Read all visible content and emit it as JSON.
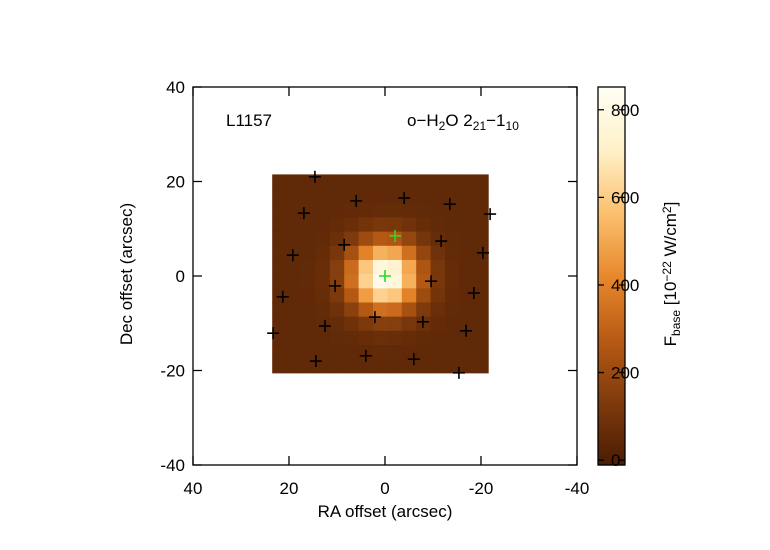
{
  "chart_data": {
    "type": "heatmap",
    "annotation": "L1157",
    "label_parts": [
      {
        "text": "o−H"
      },
      {
        "text": "2",
        "sub": true
      },
      {
        "text": "O 2"
      },
      {
        "text": "21",
        "sub": true
      },
      {
        "text": "−1"
      },
      {
        "text": "10",
        "sub": true
      }
    ],
    "x_label": "RA offset (arcsec)",
    "y_label": "Dec offset (arcsec)",
    "colorbar_label_parts": [
      {
        "text": "F"
      },
      {
        "text": "base",
        "sub": true
      },
      {
        "text": " [10"
      },
      {
        "text": "−22",
        "sup": true
      },
      {
        "text": " W/cm"
      },
      {
        "text": "2",
        "sup": true
      },
      {
        "text": "]"
      }
    ],
    "xlim": [
      40,
      -40
    ],
    "ylim": [
      -40,
      40
    ],
    "xticks": [
      40,
      20,
      0,
      -20,
      -40
    ],
    "yticks": [
      -40,
      -20,
      0,
      20,
      40
    ],
    "clim": [
      -11,
      852
    ],
    "cticks": [
      0,
      200,
      400,
      600,
      800
    ],
    "colormap": [
      "#4a1c04",
      "#7e3a0c",
      "#b85a14",
      "#e8882c",
      "#fbc06e",
      "#fff0c8",
      "#fffff4"
    ],
    "cell_size": 3,
    "x": [
      22,
      19,
      16,
      13,
      10,
      7,
      4,
      1,
      -2,
      -5,
      -8,
      -11,
      -14,
      -17,
      -20
    ],
    "y": [
      -19,
      -16,
      -13,
      -10,
      -7,
      -4,
      -1,
      2,
      5,
      8,
      11,
      14,
      17,
      20
    ],
    "z": [
      [
        50,
        50,
        50,
        50,
        50,
        50,
        50,
        50,
        50,
        50,
        50,
        50,
        50,
        50,
        50
      ],
      [
        50,
        50,
        50,
        50,
        51,
        52,
        53,
        55,
        54,
        53,
        51,
        50,
        50,
        50,
        50
      ],
      [
        50,
        50,
        50,
        51,
        54,
        60,
        70,
        77,
        75,
        67,
        58,
        52,
        51,
        50,
        50
      ],
      [
        50,
        50,
        51,
        54,
        65,
        91,
        128,
        156,
        150,
        116,
        80,
        60,
        52,
        50,
        50
      ],
      [
        50,
        50,
        52,
        60,
        91,
        163,
        268,
        344,
        327,
        232,
        133,
        77,
        56,
        51,
        50
      ],
      [
        50,
        50,
        53,
        70,
        128,
        268,
        472,
        619,
        586,
        403,
        211,
        102,
        62,
        52,
        50
      ],
      [
        50,
        51,
        55,
        76,
        156,
        344,
        619,
        818,
        773,
        526,
        268,
        120,
        66,
        52,
        50
      ],
      [
        50,
        51,
        54,
        75,
        150,
        327,
        586,
        774,
        731,
        499,
        255,
        116,
        65,
        52,
        50
      ],
      [
        50,
        50,
        53,
        66,
        116,
        232,
        403,
        526,
        498,
        345,
        185,
        93,
        60,
        51,
        50
      ],
      [
        50,
        50,
        51,
        58,
        80,
        133,
        211,
        268,
        255,
        185,
        112,
        70,
        54,
        51,
        50
      ],
      [
        50,
        50,
        50,
        52,
        60,
        77,
        102,
        120,
        116,
        93,
        70,
        56,
        51,
        50,
        50
      ],
      [
        50,
        50,
        50,
        51,
        52,
        56,
        62,
        66,
        65,
        60,
        54,
        51,
        50,
        50,
        50
      ],
      [
        50,
        50,
        50,
        50,
        50,
        51,
        52,
        52,
        52,
        52,
        50,
        50,
        50,
        50,
        50
      ],
      [
        50,
        50,
        50,
        50,
        50,
        50,
        50,
        50,
        50,
        50,
        50,
        50,
        50,
        50,
        50
      ]
    ],
    "markers": [
      {
        "color": "#000000",
        "x": [
          14.6,
          16.9,
          6,
          -4,
          -13.5,
          -21.9,
          8.5,
          -11.7,
          19.2,
          -20.4,
          21.3,
          10.4,
          -9.6,
          -18.5,
          23.3,
          12.5,
          2.1,
          -7.9,
          -16.9,
          14.4,
          4,
          -6,
          -15.4
        ],
        "y": [
          21,
          13.3,
          15.9,
          16.5,
          15.2,
          13.1,
          6.6,
          7.4,
          4.4,
          4.9,
          -4.4,
          -2.1,
          -1.1,
          -3.6,
          -12.1,
          -10.6,
          -8.7,
          -9.7,
          -11.6,
          -18,
          -16.9,
          -17.6,
          -20.5
        ]
      },
      {
        "color": "#22dd22",
        "x": [
          0,
          -2.1
        ],
        "y": [
          0,
          8.5
        ]
      }
    ]
  }
}
